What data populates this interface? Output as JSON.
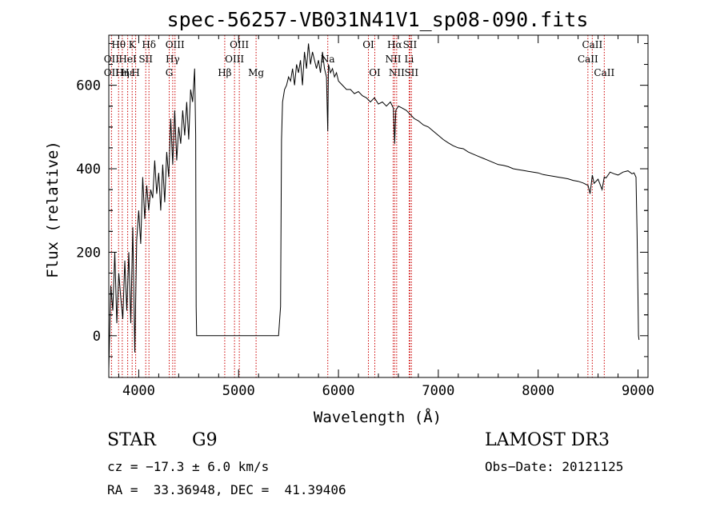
{
  "chart_data": {
    "type": "line",
    "title": "spec-56257-VB031N41V1_sp08-090.fits",
    "xlabel": "Wavelength (Å)",
    "ylabel": "Flux (relative)",
    "xlim": [
      3700,
      9100
    ],
    "ylim": [
      -100,
      720
    ],
    "xticks": [
      4000,
      5000,
      6000,
      7000,
      8000,
      9000
    ],
    "yticks": [
      0,
      200,
      400,
      600
    ],
    "xtick_labels": [
      "4000",
      "5000",
      "6000",
      "7000",
      "8000",
      "9000"
    ],
    "ytick_labels": [
      "0",
      "200",
      "400",
      "600"
    ],
    "line_color": "#000000",
    "marker_color": "#cc0000",
    "spectrum": {
      "x": [
        3700,
        3720,
        3740,
        3760,
        3780,
        3800,
        3820,
        3840,
        3860,
        3880,
        3900,
        3920,
        3940,
        3960,
        3980,
        4000,
        4020,
        4040,
        4060,
        4080,
        4100,
        4120,
        4140,
        4160,
        4180,
        4200,
        4220,
        4240,
        4260,
        4280,
        4300,
        4320,
        4340,
        4360,
        4380,
        4400,
        4420,
        4440,
        4460,
        4480,
        4500,
        4520,
        4540,
        4560,
        4570,
        4575,
        4580,
        4600,
        5000,
        5400,
        5420,
        5430,
        5440,
        5460,
        5480,
        5500,
        5520,
        5540,
        5560,
        5580,
        5600,
        5620,
        5640,
        5660,
        5680,
        5700,
        5720,
        5740,
        5760,
        5780,
        5800,
        5820,
        5840,
        5860,
        5880,
        5893,
        5900,
        5920,
        5940,
        5960,
        5980,
        6000,
        6040,
        6080,
        6120,
        6160,
        6200,
        6240,
        6280,
        6320,
        6360,
        6400,
        6440,
        6480,
        6520,
        6550,
        6563,
        6575,
        6600,
        6640,
        6680,
        6720,
        6760,
        6800,
        6850,
        6900,
        6950,
        7000,
        7050,
        7100,
        7150,
        7200,
        7250,
        7300,
        7350,
        7400,
        7450,
        7500,
        7550,
        7600,
        7650,
        7700,
        7750,
        7800,
        7850,
        7900,
        7950,
        8000,
        8050,
        8100,
        8150,
        8200,
        8250,
        8300,
        8350,
        8400,
        8450,
        8500,
        8520,
        8542,
        8560,
        8600,
        8640,
        8662,
        8680,
        8720,
        8760,
        8800,
        8850,
        8900,
        8940,
        8960,
        8980,
        8990,
        9000,
        9005,
        9010
      ],
      "y": [
        -80,
        120,
        60,
        200,
        30,
        150,
        90,
        40,
        180,
        60,
        200,
        30,
        260,
        -40,
        230,
        300,
        220,
        380,
        280,
        360,
        300,
        350,
        330,
        420,
        340,
        390,
        300,
        410,
        320,
        440,
        380,
        520,
        410,
        540,
        420,
        500,
        460,
        540,
        480,
        560,
        470,
        590,
        560,
        640,
        480,
        70,
        0,
        0,
        0,
        0,
        70,
        470,
        560,
        590,
        600,
        620,
        610,
        640,
        600,
        650,
        630,
        660,
        600,
        680,
        640,
        700,
        650,
        680,
        660,
        640,
        660,
        630,
        680,
        640,
        620,
        490,
        650,
        630,
        640,
        620,
        630,
        610,
        600,
        590,
        590,
        580,
        585,
        575,
        570,
        560,
        570,
        555,
        560,
        550,
        560,
        545,
        460,
        540,
        550,
        545,
        540,
        530,
        520,
        515,
        505,
        500,
        490,
        480,
        470,
        462,
        455,
        450,
        448,
        440,
        435,
        430,
        425,
        420,
        415,
        410,
        408,
        405,
        400,
        398,
        396,
        394,
        392,
        390,
        386,
        384,
        382,
        380,
        378,
        376,
        372,
        370,
        366,
        360,
        340,
        385,
        365,
        375,
        350,
        380,
        378,
        392,
        388,
        385,
        392,
        395,
        388,
        390,
        380,
        250,
        90,
        0,
        -10
      ]
    },
    "markers": [
      {
        "label": "Hθ",
        "wavelength": 3798,
        "row": 0
      },
      {
        "label": "OII",
        "wavelength": 3727,
        "row": 1
      },
      {
        "label": "OII",
        "wavelength": 3727,
        "row": 2
      },
      {
        "label": "Hη",
        "wavelength": 3835,
        "row": 2
      },
      {
        "label": "K",
        "wavelength": 3934,
        "row": 0
      },
      {
        "label": "HeI",
        "wavelength": 3889,
        "row": 1
      },
      {
        "label": "Hε",
        "wavelength": 3889,
        "row": 2
      },
      {
        "label": "H",
        "wavelength": 3969,
        "row": 2
      },
      {
        "label": "SII",
        "wavelength": 4070,
        "row": 1
      },
      {
        "label": "Hδ",
        "wavelength": 4102,
        "row": 0
      },
      {
        "label": "OIII",
        "wavelength": 4363,
        "row": 0
      },
      {
        "label": "Hγ",
        "wavelength": 4340,
        "row": 1
      },
      {
        "label": "G",
        "wavelength": 4305,
        "row": 2
      },
      {
        "label": "OIII",
        "wavelength": 5007,
        "row": 0
      },
      {
        "label": "OIII",
        "wavelength": 4959,
        "row": 1
      },
      {
        "label": "Hβ",
        "wavelength": 4861,
        "row": 2
      },
      {
        "label": "Mg",
        "wavelength": 5175,
        "row": 2
      },
      {
        "label": "Na",
        "wavelength": 5893,
        "row": 1
      },
      {
        "label": "OI",
        "wavelength": 6300,
        "row": 0
      },
      {
        "label": "OI",
        "wavelength": 6364,
        "row": 2
      },
      {
        "label": "Hα",
        "wavelength": 6563,
        "row": 0
      },
      {
        "label": "NII",
        "wavelength": 6548,
        "row": 1
      },
      {
        "label": "NII",
        "wavelength": 6583,
        "row": 2
      },
      {
        "label": "SII",
        "wavelength": 6716,
        "row": 0
      },
      {
        "label": "Li",
        "wavelength": 6708,
        "row": 1
      },
      {
        "label": "SII",
        "wavelength": 6731,
        "row": 2
      },
      {
        "label": "CaII",
        "wavelength": 8542,
        "row": 0
      },
      {
        "label": "CaII",
        "wavelength": 8498,
        "row": 1
      },
      {
        "label": "CaII",
        "wavelength": 8662,
        "row": 2
      }
    ]
  },
  "info": {
    "class": "STAR",
    "subclass": "G9",
    "survey": "LAMOST DR3",
    "cz": "cz = −17.3 ± 6.0 km/s",
    "obs_date": "Obs−Date: 20121125",
    "coords": "RA =  33.36948, DEC =  41.39406"
  }
}
